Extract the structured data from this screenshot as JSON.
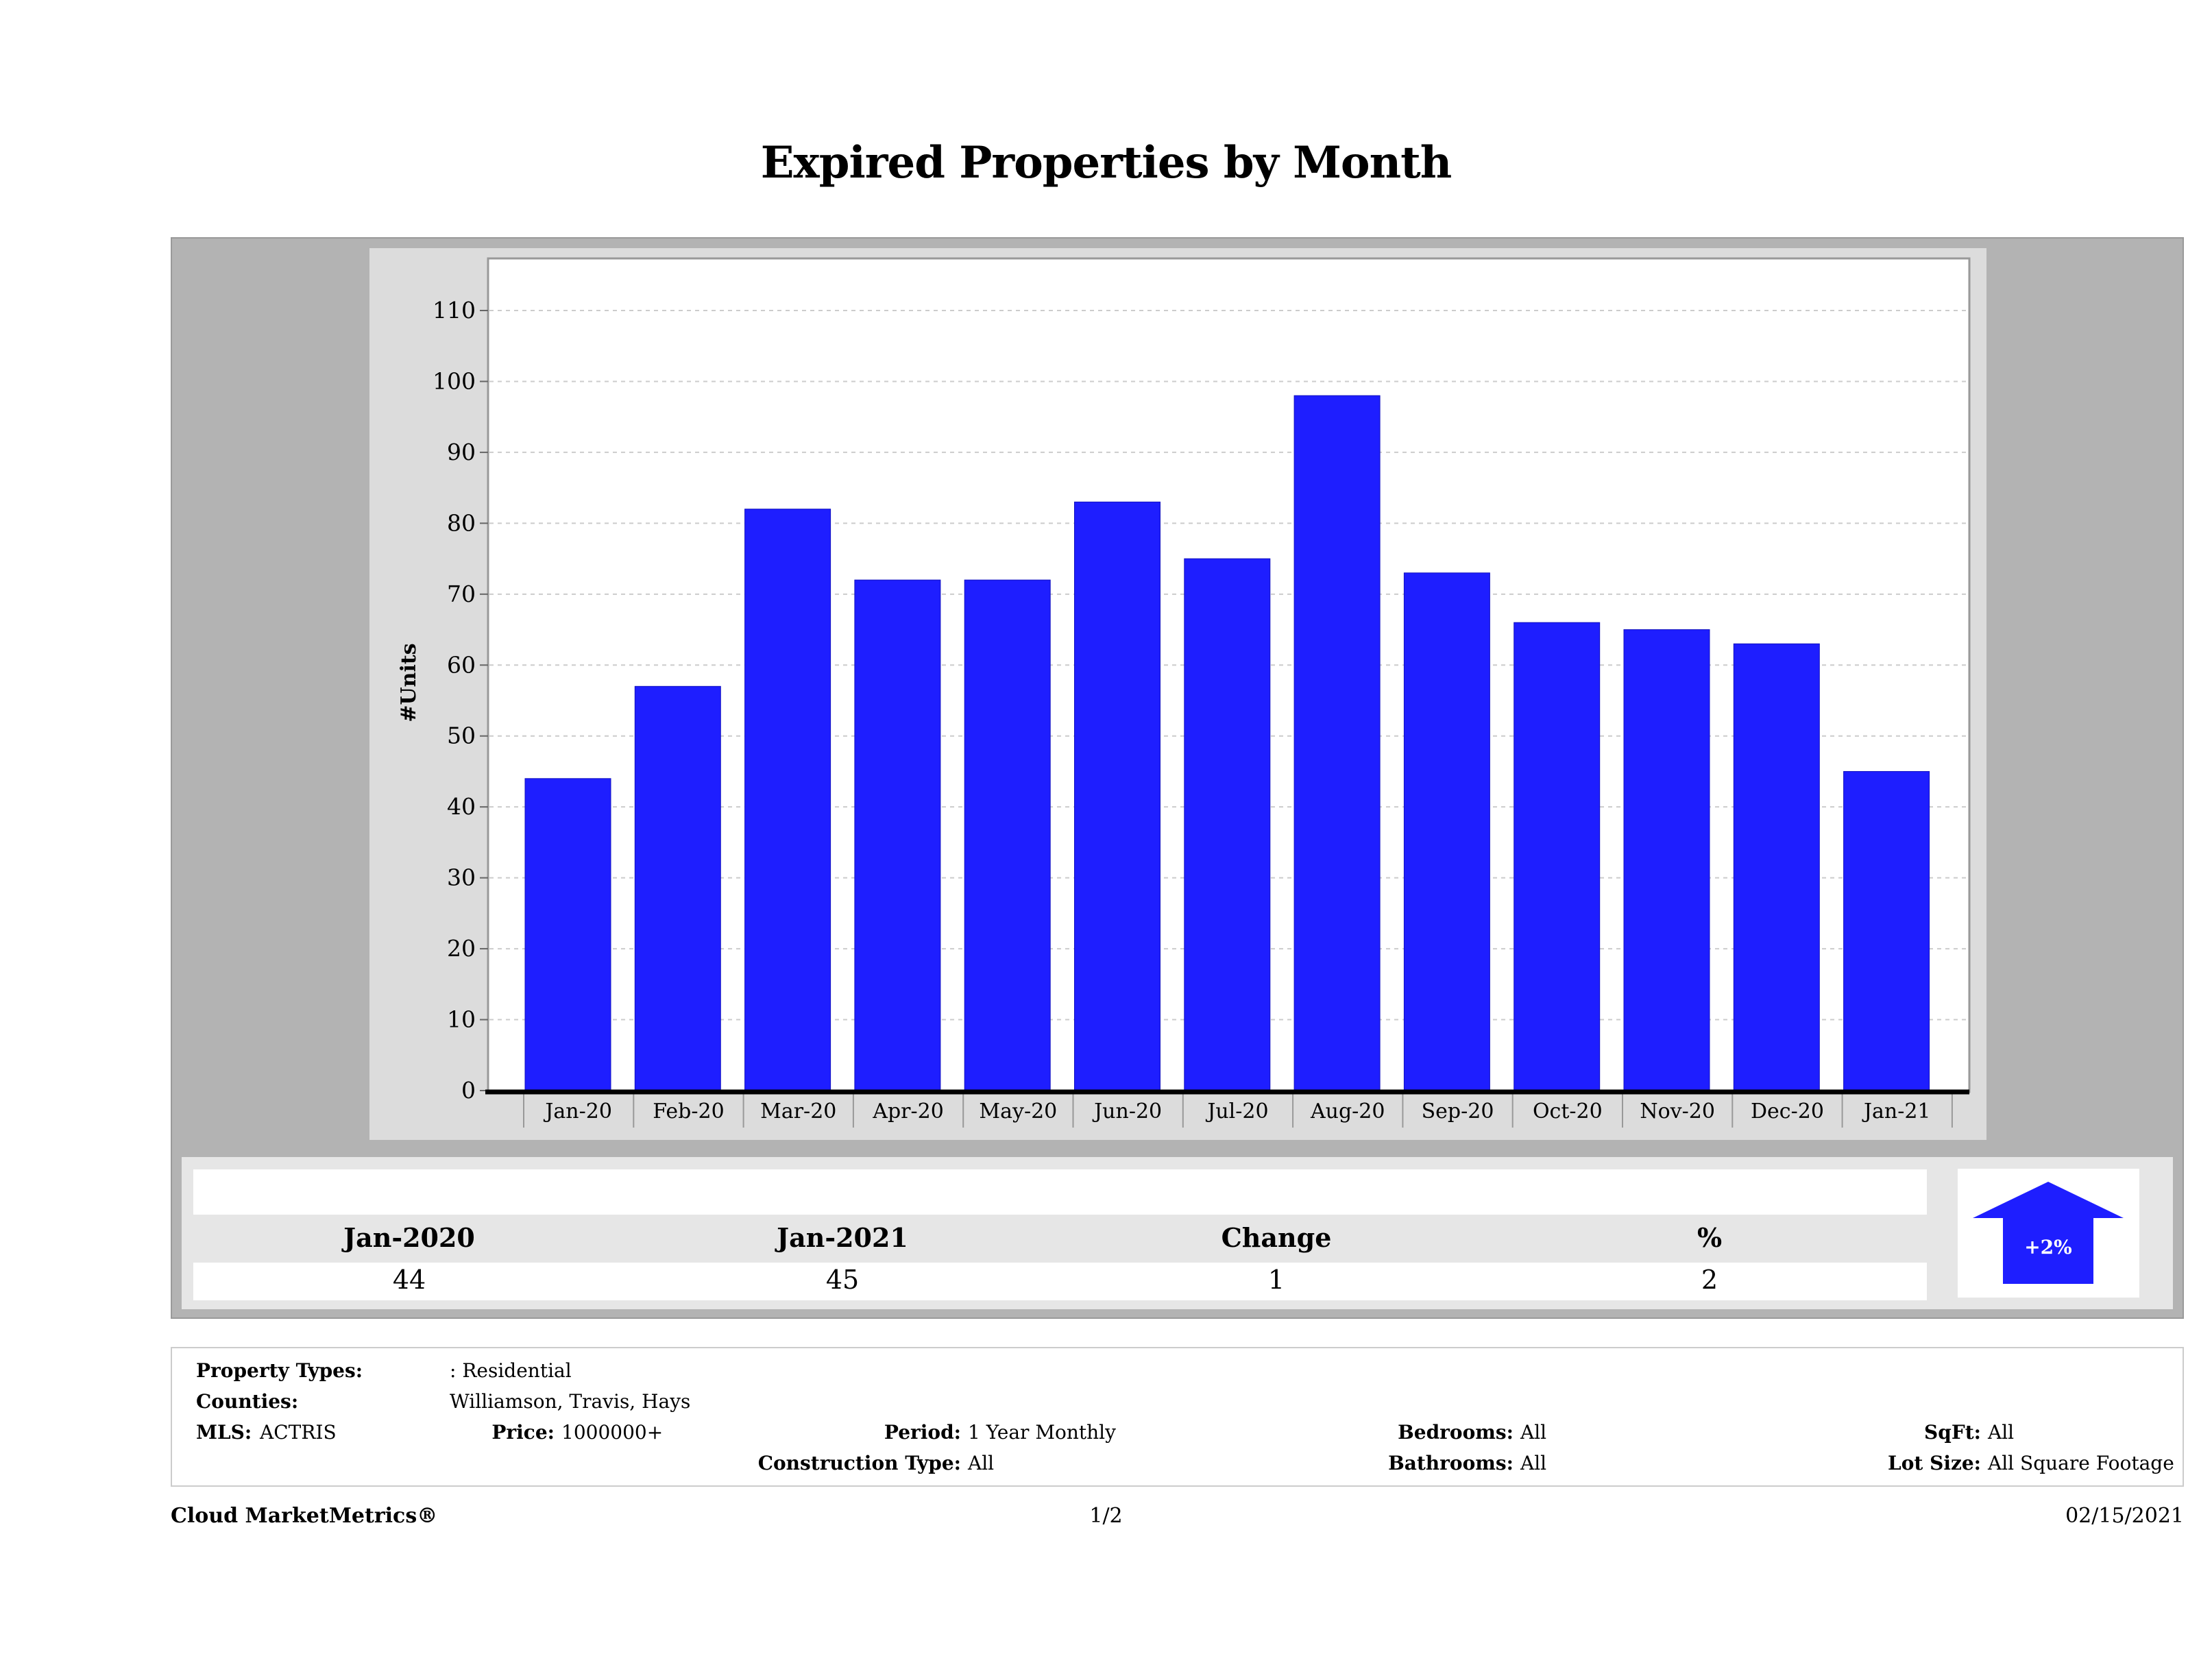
{
  "chart_data": {
    "type": "bar",
    "title": "Expired Properties by Month",
    "ylabel": "#Units",
    "xlabel": "",
    "categories": [
      "Jan-20",
      "Feb-20",
      "Mar-20",
      "Apr-20",
      "May-20",
      "Jun-20",
      "Jul-20",
      "Aug-20",
      "Sep-20",
      "Oct-20",
      "Nov-20",
      "Dec-20",
      "Jan-21"
    ],
    "values": [
      44,
      57,
      82,
      72,
      72,
      83,
      75,
      98,
      73,
      66,
      65,
      63,
      45
    ],
    "ylim": [
      0,
      110
    ],
    "yticks": [
      0,
      10,
      20,
      30,
      40,
      50,
      60,
      70,
      80,
      90,
      100,
      110
    ],
    "grid": true,
    "bar_color": "#1e1eff"
  },
  "summary": {
    "headers": [
      "Jan-2020",
      "Jan-2021",
      "Change",
      "%"
    ],
    "values": [
      "44",
      "45",
      "1",
      "2"
    ],
    "arrow_label": "+2%",
    "arrow_direction": "up",
    "arrow_color": "#1e1eff"
  },
  "info": {
    "property_types_label": "Property Types:",
    "property_types_value": ": Residential",
    "counties_label": "Counties:",
    "counties_value": "Williamson, Travis, Hays",
    "mls_label": "MLS:",
    "mls_value": "ACTRIS",
    "price_label": "Price:",
    "price_value": "1000000+",
    "period_label": "Period:",
    "period_value": "1 Year Monthly",
    "construction_label": "Construction Type:",
    "construction_value": "All",
    "bedrooms_label": "Bedrooms:",
    "bedrooms_value": "All",
    "bathrooms_label": "Bathrooms:",
    "bathrooms_value": "All",
    "sqft_label": "SqFt:",
    "sqft_value": "All",
    "lotsize_label": "Lot Size:",
    "lotsize_value": "All Square Footage"
  },
  "footer": {
    "brand": "Cloud MarketMetrics®",
    "page": "1/2",
    "date": "02/15/2021"
  }
}
